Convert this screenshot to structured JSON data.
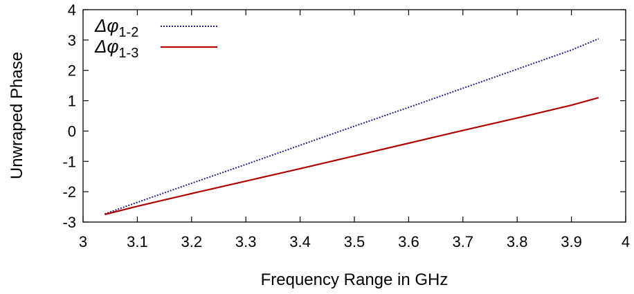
{
  "chart_data": {
    "type": "line",
    "title": "",
    "xlabel": "Frequency Range in GHz",
    "ylabel": "Unwraped Phase",
    "xlim": [
      3,
      4
    ],
    "ylim": [
      -3,
      4
    ],
    "xticks": [
      "3",
      "3.1",
      "3.2",
      "3.3",
      "3.4",
      "3.5",
      "3.6",
      "3.7",
      "3.8",
      "3.9",
      "4"
    ],
    "yticks": [
      "-3",
      "-2",
      "-1",
      "0",
      "1",
      "2",
      "3",
      "4"
    ],
    "grid": false,
    "legend_position": "top-left",
    "series": [
      {
        "name": "Δφ1-2",
        "name_main": "Δφ",
        "name_sub": "1-2",
        "style": "dotted",
        "color": "#1f1f8f",
        "x": [
          3.04,
          3.1,
          3.2,
          3.3,
          3.4,
          3.5,
          3.6,
          3.7,
          3.8,
          3.9,
          3.95
        ],
        "y": [
          -2.73,
          -2.35,
          -1.72,
          -1.1,
          -0.47,
          0.16,
          0.78,
          1.41,
          2.04,
          2.67,
          3.04
        ]
      },
      {
        "name": "Δφ1-3",
        "name_main": "Δφ",
        "name_sub": "1-3",
        "style": "solid",
        "color": "#b00000",
        "x": [
          3.04,
          3.1,
          3.2,
          3.3,
          3.4,
          3.5,
          3.6,
          3.7,
          3.8,
          3.9,
          3.95
        ],
        "y": [
          -2.75,
          -2.48,
          -2.06,
          -1.65,
          -1.24,
          -0.82,
          -0.4,
          0.02,
          0.43,
          0.85,
          1.1
        ]
      }
    ]
  }
}
